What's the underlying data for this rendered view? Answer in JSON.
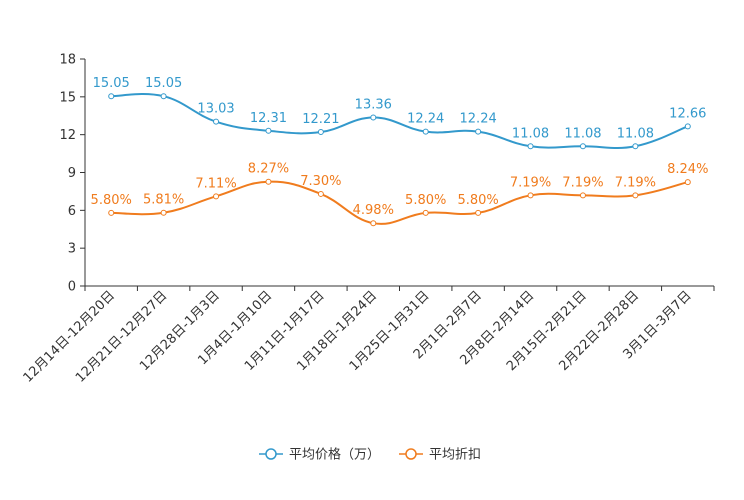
{
  "chart_data": {
    "type": "line",
    "categories": [
      "12月14日-12月20日",
      "12月21日-12月27日",
      "12月28日-1月3日",
      "1月4日-1月10日",
      "1月11日-1月17日",
      "1月18日-1月24日",
      "1月25日-1月31日",
      "2月1日-2月7日",
      "2月8日-2月14日",
      "2月15日-2月21日",
      "2月22日-2月28日",
      "3月1日-3月7日"
    ],
    "ylim": [
      0,
      18
    ],
    "yticks": [
      0,
      3,
      6,
      9,
      12,
      15,
      18
    ],
    "series": [
      {
        "name": "平均价格（万）",
        "color": "#3399cc",
        "values": [
          15.05,
          15.05,
          13.03,
          12.31,
          12.21,
          13.36,
          12.24,
          12.24,
          11.08,
          11.08,
          11.08,
          12.66
        ],
        "labels": [
          "15.05",
          "15.05",
          "13.03",
          "12.31",
          "12.21",
          "13.36",
          "12.24",
          "12.24",
          "11.08",
          "11.08",
          "11.08",
          "12.66"
        ]
      },
      {
        "name": "平均折扣",
        "color": "#f07c1e",
        "values": [
          5.8,
          5.81,
          7.11,
          8.27,
          7.3,
          4.98,
          5.8,
          5.8,
          7.19,
          7.19,
          7.19,
          8.24
        ],
        "labels": [
          "5.80%",
          "5.81%",
          "7.11%",
          "8.27%",
          "7.30%",
          "4.98%",
          "5.80%",
          "5.80%",
          "7.19%",
          "7.19%",
          "7.19%",
          "8.24%"
        ]
      }
    ],
    "legend": "bottom-center"
  }
}
